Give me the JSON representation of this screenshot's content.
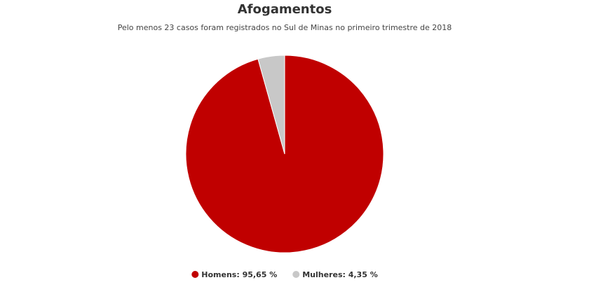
{
  "chart_data": {
    "type": "pie",
    "title": "Afogamentos",
    "subtitle": "Pelo menos 23 casos foram registrados no Sul de Minas no primeiro trimestre de 2018",
    "categories": [
      "Homens: 95,65 %",
      "Mulheres: 4,35 %"
    ],
    "values": [
      95.65,
      4.35
    ],
    "colors": [
      "#c00000",
      "#c8c8c8"
    ]
  }
}
